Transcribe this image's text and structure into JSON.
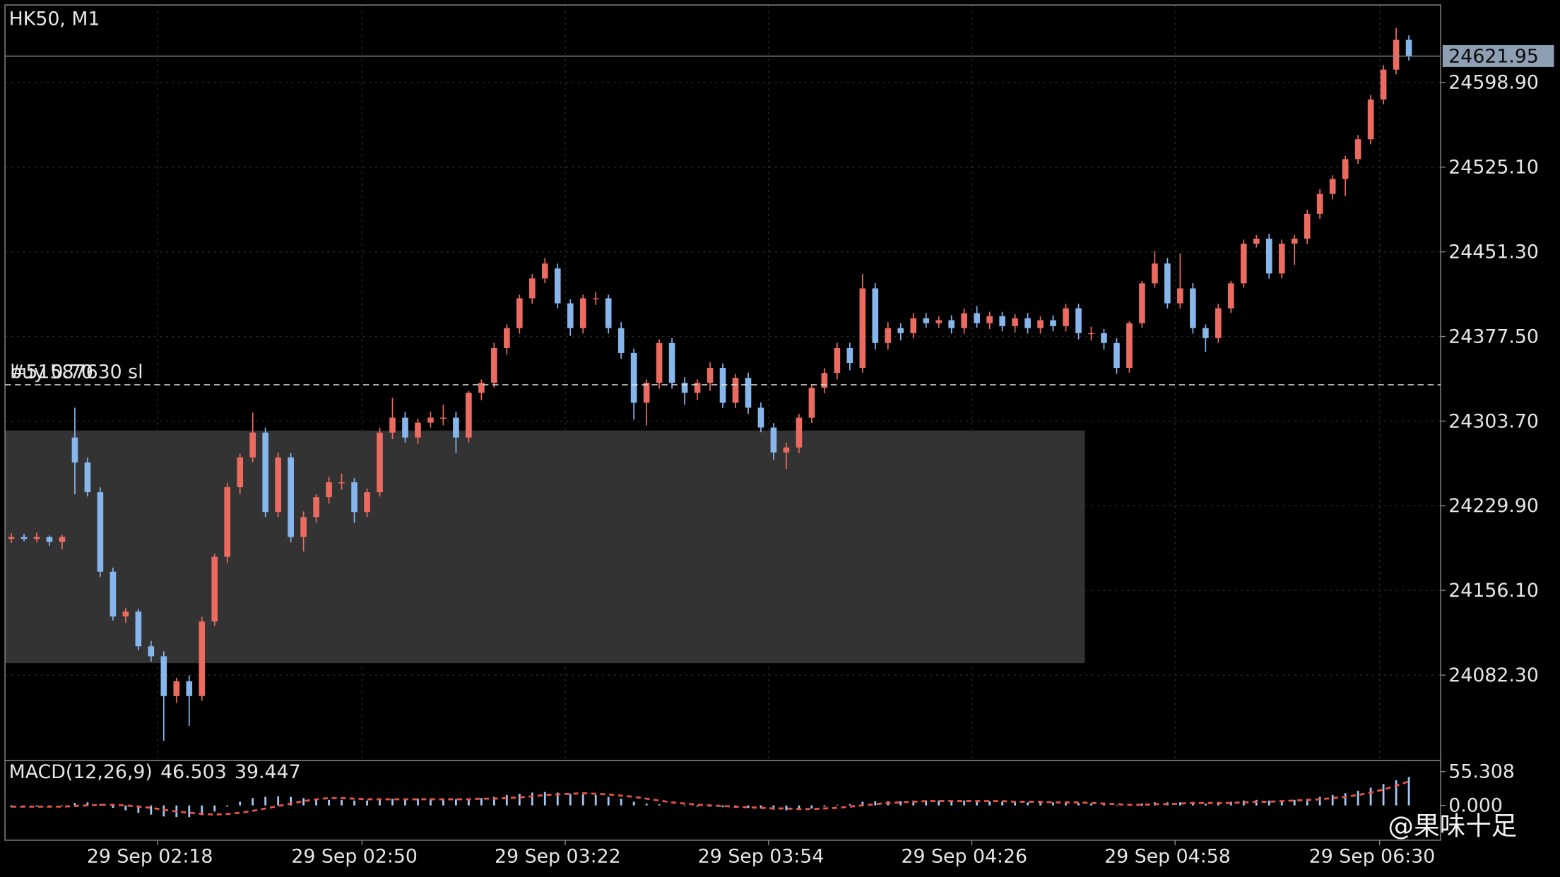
{
  "chart_data": {
    "type": "candlestick",
    "title": "HK50, M1",
    "up_color": "#eb6b61",
    "down_color": "#86b6ec",
    "xlim": [
      -0.5,
      112.5
    ],
    "xticks": [
      {
        "value": 11.5,
        "label": "29 Sep 02:18"
      },
      {
        "value": 27.6,
        "label": "29 Sep 02:50"
      },
      {
        "value": 43.6,
        "label": "29 Sep 03:22"
      },
      {
        "value": 59.6,
        "label": "29 Sep 03:54"
      },
      {
        "value": 75.6,
        "label": "29 Sep 04:26"
      },
      {
        "value": 91.6,
        "label": "29 Sep 04:58"
      },
      {
        "value": 107.7,
        "label": "29 Sep 06:30"
      }
    ],
    "ylim": [
      24007.7,
      24666.5
    ],
    "yticks": [
      {
        "value": 24598.9,
        "label": "24598.90"
      },
      {
        "value": 24525.1,
        "label": "24525.10"
      },
      {
        "value": 24451.3,
        "label": "24451.30"
      },
      {
        "value": 24377.5,
        "label": "24377.50"
      },
      {
        "value": 24303.7,
        "label": "24303.70"
      },
      {
        "value": 24229.9,
        "label": "24229.90"
      },
      {
        "value": 24156.1,
        "label": "24156.10"
      },
      {
        "value": 24082.3,
        "label": "24082.30"
      }
    ],
    "grid": true,
    "current_price": 24621.95,
    "order": {
      "price": 24335.4,
      "labels": [
        "#51587630 sl",
        "buy 0.70"
      ]
    },
    "zone": {
      "ylim": [
        24092.7,
        24295.5
      ],
      "xlim": [
        -0.5,
        84.5
      ],
      "color": "#333333"
    },
    "ohlc": [
      [
        24201.0,
        24206.0,
        24197.5,
        24202.7
      ],
      [
        24202.7,
        24205.5,
        24199.0,
        24201.0
      ],
      [
        24201.0,
        24206.5,
        24198.0,
        24202.7
      ],
      [
        24202.7,
        24204.0,
        24195.0,
        24198.4
      ],
      [
        24198.4,
        24204.5,
        24192.0,
        24202.7
      ],
      [
        24289.4,
        24315.4,
        24240.0,
        24267.7
      ],
      [
        24267.7,
        24272.0,
        24238.0,
        24241.7
      ],
      [
        24241.7,
        24246.0,
        24168.0,
        24172.4
      ],
      [
        24172.4,
        24176.0,
        24130.0,
        24133.4
      ],
      [
        24133.4,
        24141.0,
        24128.0,
        24137.7
      ],
      [
        24137.7,
        24140.0,
        24104.0,
        24107.4
      ],
      [
        24107.4,
        24112.0,
        24094.0,
        24098.7
      ],
      [
        24098.7,
        24103.0,
        24025.0,
        24064.0
      ],
      [
        24064.0,
        24080.0,
        24058.0,
        24077.0
      ],
      [
        24077.0,
        24082.0,
        24038.0,
        24064.0
      ],
      [
        24064.0,
        24133.0,
        24060.0,
        24129.0
      ],
      [
        24129.0,
        24188.0,
        24125.0,
        24185.4
      ],
      [
        24185.4,
        24250.0,
        24180.0,
        24246.1
      ],
      [
        24246.1,
        24275.0,
        24240.0,
        24272.1
      ],
      [
        24272.1,
        24311.1,
        24268.0,
        24293.7
      ],
      [
        24293.7,
        24298.0,
        24220.0,
        24224.4
      ],
      [
        24224.4,
        24276.4,
        24220.0,
        24272.1
      ],
      [
        24272.1,
        24276.0,
        24198.0,
        24202.7
      ],
      [
        24202.7,
        24225.0,
        24190.0,
        24220.1
      ],
      [
        24220.1,
        24240.0,
        24215.0,
        24237.4
      ],
      [
        24237.4,
        24255.0,
        24232.0,
        24250.4
      ],
      [
        24250.4,
        24258.0,
        24244.0,
        24250.4
      ],
      [
        24250.4,
        24254.0,
        24215.0,
        24224.4
      ],
      [
        24224.4,
        24245.0,
        24220.0,
        24241.7
      ],
      [
        24241.7,
        24298.0,
        24238.0,
        24293.7
      ],
      [
        24293.7,
        24324.0,
        24288.0,
        24306.7
      ],
      [
        24306.7,
        24312.0,
        24285.0,
        24289.4
      ],
      [
        24289.4,
        24306.0,
        24284.0,
        24302.4
      ],
      [
        24302.4,
        24312.0,
        24298.0,
        24306.7
      ],
      [
        24306.7,
        24318.0,
        24300.0,
        24306.7
      ],
      [
        24306.7,
        24312.0,
        24276.0,
        24289.4
      ],
      [
        24289.4,
        24330.0,
        24285.0,
        24328.4
      ],
      [
        24328.4,
        24340.0,
        24322.0,
        24337.1
      ],
      [
        24337.1,
        24372.0,
        24333.0,
        24367.4
      ],
      [
        24367.4,
        24388.0,
        24362.0,
        24384.8
      ],
      [
        24384.8,
        24414.0,
        24380.0,
        24410.8
      ],
      [
        24410.8,
        24432.0,
        24406.0,
        24428.1
      ],
      [
        24428.1,
        24446.0,
        24424.0,
        24441.1
      ],
      [
        24436.8,
        24441.0,
        24402.0,
        24406.4
      ],
      [
        24406.4,
        24410.0,
        24378.0,
        24384.8
      ],
      [
        24384.8,
        24414.0,
        24380.0,
        24410.8
      ],
      [
        24410.8,
        24416.0,
        24405.0,
        24410.8
      ],
      [
        24410.8,
        24414.0,
        24380.0,
        24384.8
      ],
      [
        24384.8,
        24390.0,
        24358.0,
        24363.1
      ],
      [
        24363.1,
        24367.0,
        24305.0,
        24319.7
      ],
      [
        24319.7,
        24340.0,
        24300.0,
        24337.1
      ],
      [
        24337.1,
        24375.0,
        24332.0,
        24371.8
      ],
      [
        24371.8,
        24376.0,
        24332.0,
        24337.1
      ],
      [
        24337.1,
        24342.0,
        24318.0,
        24328.4
      ],
      [
        24328.4,
        24340.0,
        24322.0,
        24337.1
      ],
      [
        24337.1,
        24355.0,
        24330.0,
        24350.1
      ],
      [
        24350.1,
        24354.0,
        24315.0,
        24319.7
      ],
      [
        24319.7,
        24345.0,
        24315.0,
        24341.4
      ],
      [
        24341.4,
        24346.0,
        24310.0,
        24315.4
      ],
      [
        24315.4,
        24320.0,
        24294.0,
        24298.1
      ],
      [
        24298.1,
        24302.0,
        24270.0,
        24276.4
      ],
      [
        24276.4,
        24285.0,
        24262.0,
        24280.7
      ],
      [
        24280.7,
        24310.0,
        24276.0,
        24306.7
      ],
      [
        24306.7,
        24335.0,
        24302.0,
        24332.7
      ],
      [
        24332.7,
        24350.0,
        24328.0,
        24345.7
      ],
      [
        24345.7,
        24372.0,
        24340.0,
        24367.4
      ],
      [
        24367.4,
        24372.0,
        24348.0,
        24354.4
      ],
      [
        24350.1,
        24432.0,
        24346.0,
        24419.4
      ],
      [
        24419.4,
        24424.0,
        24366.0,
        24371.8
      ],
      [
        24371.8,
        24390.0,
        24366.0,
        24384.8
      ],
      [
        24384.8,
        24389.0,
        24374.0,
        24380.4
      ],
      [
        24380.4,
        24398.0,
        24376.0,
        24393.4
      ],
      [
        24393.4,
        24398.0,
        24385.0,
        24389.1
      ],
      [
        24389.1,
        24395.0,
        24385.0,
        24391.7
      ],
      [
        24391.7,
        24396.0,
        24380.0,
        24384.8
      ],
      [
        24384.8,
        24402.0,
        24380.0,
        24397.8
      ],
      [
        24397.8,
        24404.0,
        24385.0,
        24389.1
      ],
      [
        24389.1,
        24399.0,
        24384.0,
        24395.2
      ],
      [
        24395.2,
        24399.0,
        24382.0,
        24386.5
      ],
      [
        24386.5,
        24397.0,
        24381.0,
        24393.4
      ],
      [
        24393.4,
        24398.0,
        24380.0,
        24384.8
      ],
      [
        24384.8,
        24395.0,
        24380.0,
        24391.7
      ],
      [
        24391.7,
        24396.0,
        24382.0,
        24386.5
      ],
      [
        24386.5,
        24406.0,
        24382.0,
        24402.1
      ],
      [
        24402.1,
        24406.0,
        24375.0,
        24380.4
      ],
      [
        24380.4,
        24386.0,
        24374.0,
        24380.4
      ],
      [
        24380.4,
        24384.0,
        24366.0,
        24371.8
      ],
      [
        24371.8,
        24376.0,
        24345.0,
        24350.1
      ],
      [
        24350.1,
        24391.0,
        24346.0,
        24389.1
      ],
      [
        24389.1,
        24426.0,
        24385.0,
        24423.8
      ],
      [
        24423.8,
        24452.0,
        24420.0,
        24441.1
      ],
      [
        24441.1,
        24446.0,
        24402.0,
        24406.4
      ],
      [
        24406.4,
        24450.0,
        24402.0,
        24419.4
      ],
      [
        24419.4,
        24424.0,
        24380.0,
        24384.8
      ],
      [
        24384.8,
        24388.0,
        24364.0,
        24376.1
      ],
      [
        24376.1,
        24406.0,
        24372.0,
        24402.1
      ],
      [
        24402.1,
        24426.0,
        24398.0,
        24423.8
      ],
      [
        24423.8,
        24462.0,
        24420.0,
        24458.4
      ],
      [
        24458.4,
        24466.0,
        24455.0,
        24462.8
      ],
      [
        24462.8,
        24467.0,
        24428.0,
        24432.4
      ],
      [
        24432.4,
        24462.0,
        24428.0,
        24458.4
      ],
      [
        24458.4,
        24466.0,
        24440.0,
        24462.8
      ],
      [
        24462.8,
        24488.0,
        24458.0,
        24484.4
      ],
      [
        24484.4,
        24506.0,
        24480.0,
        24501.8
      ],
      [
        24501.8,
        24518.0,
        24497.0,
        24514.8
      ],
      [
        24514.8,
        24535.0,
        24500.0,
        24532.1
      ],
      [
        24532.1,
        24553.0,
        24528.0,
        24549.4
      ],
      [
        24549.4,
        24588.0,
        24545.0,
        24584.1
      ],
      [
        24584.1,
        24614.0,
        24580.0,
        24610.1
      ],
      [
        24610.1,
        24646.5,
        24606.0,
        24636.1
      ],
      [
        24636.1,
        24640.0,
        24618.0,
        24621.95
      ]
    ],
    "indicator": {
      "type": "macd",
      "label": "MACD(12,26,9)",
      "main_value": 46.503,
      "signal_value": 39.447,
      "ylim": [
        -56.9,
        73.2
      ],
      "yticks": [
        55.308,
        {
          "value": 0,
          "label": "0.000"
        }
      ],
      "hist_color": "#a3c8f2",
      "signal_color": "#e8534a",
      "histogram": [
        -3,
        -3,
        -2,
        -2,
        -1,
        4,
        5,
        2,
        -4,
        -8,
        -12,
        -15,
        -18,
        -19,
        -19,
        -16,
        -10,
        -2,
        6,
        12,
        14,
        15,
        14,
        12,
        10,
        9,
        9,
        8,
        8,
        10,
        11,
        11,
        11,
        11,
        11,
        10,
        11,
        12,
        14,
        17,
        19,
        21,
        22,
        21,
        19,
        18,
        17,
        14,
        11,
        6,
        3,
        2,
        0,
        -1,
        -2,
        -2,
        -3,
        -4,
        -4,
        -5,
        -7,
        -8,
        -7,
        -5,
        -2,
        1,
        2,
        6,
        7,
        7,
        7,
        8,
        8,
        8,
        7,
        8,
        7,
        7,
        6,
        6,
        5,
        5,
        5,
        5,
        4,
        3,
        2,
        -1,
        0,
        3,
        5,
        5,
        5,
        4,
        3,
        4,
        6,
        8,
        9,
        8,
        8,
        9,
        11,
        14,
        17,
        20,
        24,
        29,
        35,
        41,
        46.503
      ],
      "signal": [
        -2,
        -2,
        -2,
        -2,
        -2,
        -1,
        0,
        1,
        1,
        0,
        -2,
        -4,
        -7,
        -10,
        -12,
        -14,
        -15,
        -14,
        -12,
        -9,
        -5,
        -1,
        3,
        7,
        10,
        12,
        12,
        11,
        10,
        10,
        10,
        10,
        10,
        10,
        10,
        10,
        10,
        11,
        11,
        12,
        13,
        15,
        17,
        18,
        19,
        20,
        19,
        18,
        16,
        14,
        11,
        8,
        5,
        3,
        1,
        0,
        -1,
        -2,
        -3,
        -4,
        -5,
        -5,
        -6,
        -6,
        -5,
        -4,
        -2,
        0,
        2,
        4,
        5,
        6,
        7,
        7,
        7,
        7,
        7,
        7,
        7,
        6,
        6,
        6,
        5,
        5,
        5,
        4,
        3,
        2,
        1,
        1,
        2,
        2,
        3,
        4,
        4,
        4,
        4,
        5,
        6,
        6,
        7,
        8,
        9,
        10,
        12,
        14,
        17,
        21,
        26,
        32,
        39.447
      ]
    },
    "watermark": "@果味十足"
  }
}
